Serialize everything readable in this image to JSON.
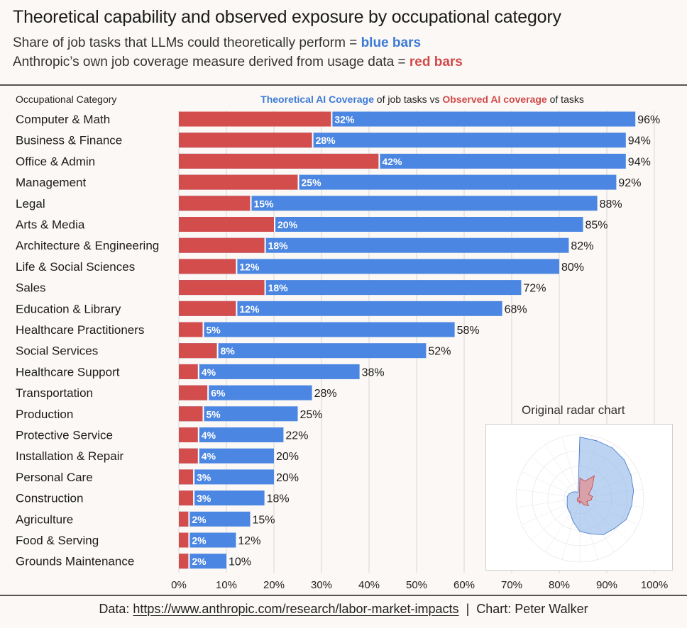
{
  "header": {
    "title": "Theoretical capability and observed exposure by occupational category",
    "subtitle1_prefix": "Share of job tasks that LLMs could theoretically perform = ",
    "subtitle1_highlight": "blue bars",
    "subtitle2_prefix": "Anthropic’s own job coverage measure derived from usage data = ",
    "subtitle2_highlight": "red bars"
  },
  "legend": {
    "column_header": "Occupational Category",
    "theoretical": "Theoretical AI Coverage",
    "mid": " of job tasks vs ",
    "observed": "Observed AI coverage",
    "tail": " of tasks"
  },
  "colors": {
    "theoretical": "#4a86e2",
    "observed": "#d44d4d",
    "grid": "#d9d9d9"
  },
  "chart_data": {
    "type": "bar",
    "orientation": "horizontal",
    "categories": [
      "Computer & Math",
      "Business & Finance",
      "Office & Admin",
      "Management",
      "Legal",
      "Arts & Media",
      "Architecture & Engineering",
      "Life & Social Sciences",
      "Sales",
      "Education & Library",
      "Healthcare Practitioners",
      "Social Services",
      "Healthcare Support",
      "Transportation",
      "Production",
      "Protective Service",
      "Installation & Repair",
      "Personal Care",
      "Construction",
      "Agriculture",
      "Food & Serving",
      "Grounds Maintenance"
    ],
    "series": [
      {
        "name": "Theoretical AI Coverage",
        "values": [
          96,
          94,
          94,
          92,
          88,
          85,
          82,
          80,
          72,
          68,
          58,
          52,
          38,
          28,
          25,
          22,
          20,
          20,
          18,
          15,
          12,
          10
        ]
      },
      {
        "name": "Observed AI coverage",
        "values": [
          32,
          28,
          42,
          25,
          15,
          20,
          18,
          12,
          18,
          12,
          5,
          8,
          4,
          6,
          5,
          4,
          4,
          3,
          3,
          2,
          2,
          2
        ]
      }
    ],
    "value_suffix": "%",
    "xlim": [
      0,
      100
    ],
    "x_ticks": [
      "0%",
      "10%",
      "20%",
      "30%",
      "40%",
      "50%",
      "60%",
      "70%",
      "80%",
      "90%",
      "100%"
    ],
    "grid": true
  },
  "inset": {
    "title": "Original radar chart"
  },
  "footer": {
    "prefix": "Data: ",
    "link": "https://www.anthropic.com/research/labor-market-impacts",
    "separator": "  |  ",
    "credit": "Chart: Peter Walker"
  }
}
